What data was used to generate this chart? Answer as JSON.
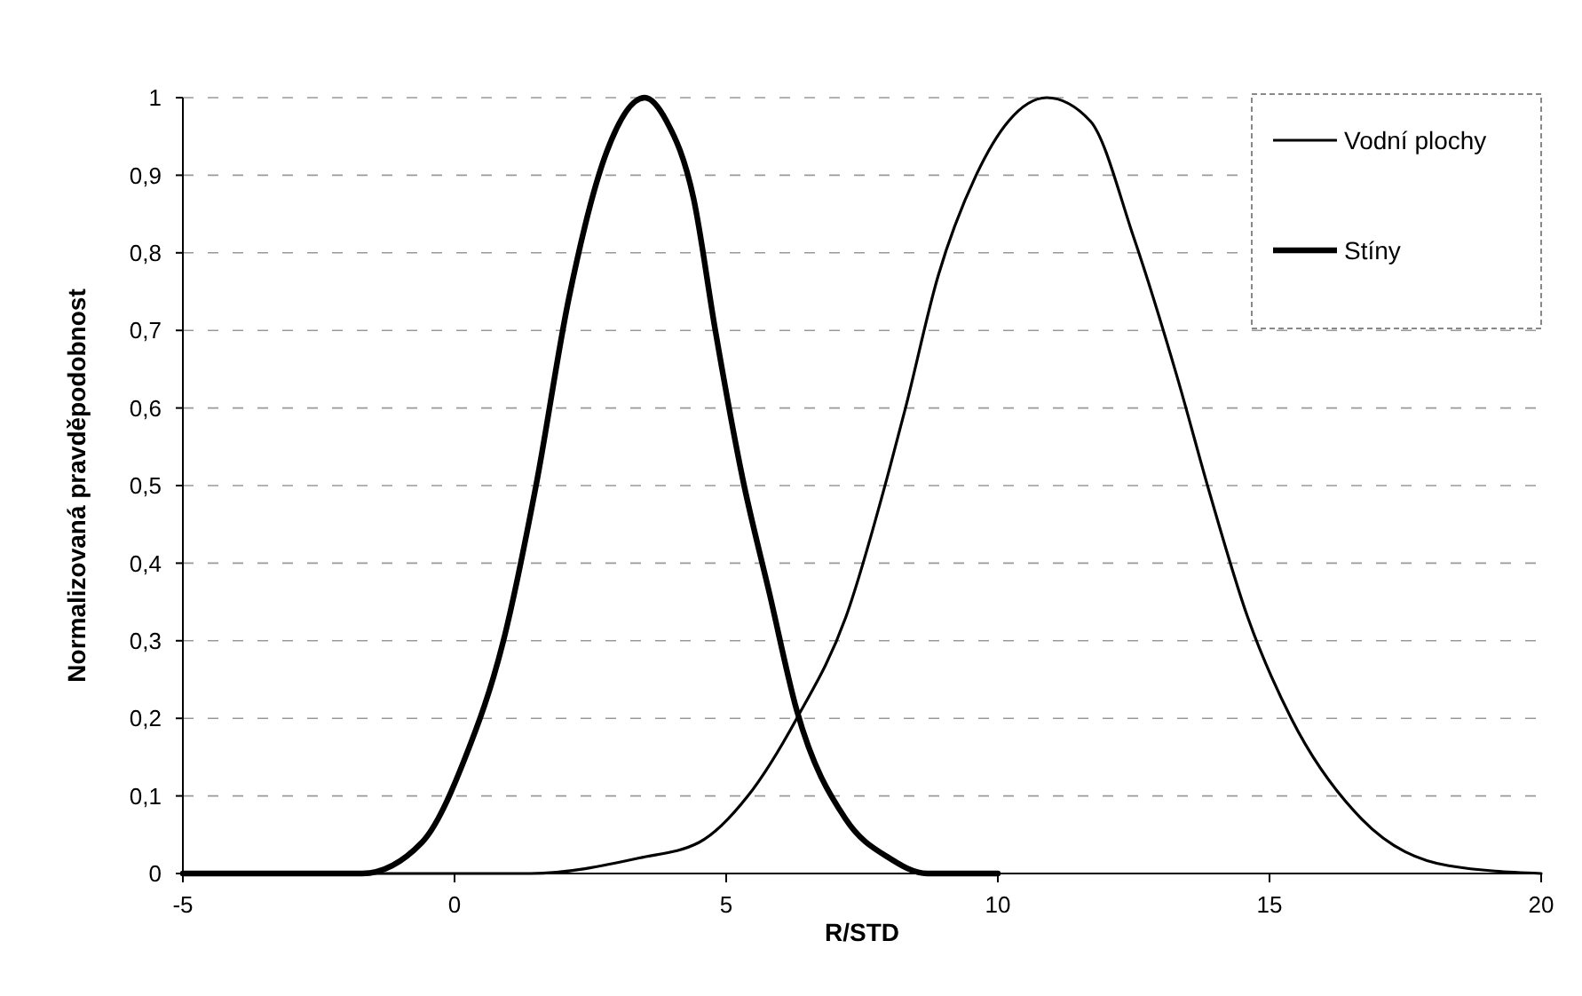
{
  "chart_data": {
    "type": "line",
    "xlabel": "R/STD",
    "ylabel": "Normalizovaná pravděpodobnost",
    "xlim": [
      -5,
      20
    ],
    "xticks": [
      -5,
      0,
      5,
      10,
      15,
      20
    ],
    "ylim": [
      0,
      1
    ],
    "yticks": [
      0,
      {
        "value": 0.1,
        "label": "0,1"
      },
      {
        "value": 0.2,
        "label": "0,2"
      },
      {
        "value": 0.3,
        "label": "0,3"
      },
      {
        "value": 0.4,
        "label": "0,4"
      },
      {
        "value": 0.5,
        "label": "0,5"
      },
      {
        "value": 0.6,
        "label": "0,6"
      },
      {
        "value": 0.7,
        "label": "0,7"
      },
      {
        "value": 0.8,
        "label": "0,8"
      },
      {
        "value": 0.9,
        "label": "0,9"
      },
      1
    ],
    "grid": "y",
    "legend": "top right",
    "marker": "none",
    "line_style": "solid",
    "series": [
      {
        "name": "Vodní plochy",
        "color": "#000000",
        "x": [
          -5,
          1.4,
          3.4,
          4.5,
          5.4,
          6.3,
          7.2,
          8,
          8.3,
          8.9,
          9.6,
          10.2,
          10.9,
          11.7,
          12.5,
          13.3,
          13.9,
          14.6,
          15.4,
          16.7,
          18.3,
          20
        ],
        "values": [
          0,
          0,
          0.02,
          0.04,
          0.1,
          0.2,
          0.33,
          0.52,
          0.6,
          0.77,
          0.9,
          0.97,
          1,
          0.97,
          0.82,
          0.64,
          0.49,
          0.33,
          0.2,
          0.07,
          0.01,
          0
        ]
      },
      {
        "name": "Stíny",
        "color": "#000000",
        "x": [
          -5,
          -1.7,
          -0.6,
          0.2,
          0.9,
          1.5,
          2.1,
          2.8,
          3.5,
          3.9,
          4.4,
          4.8,
          5.3,
          5.8,
          6.3,
          7.2,
          8,
          8.7,
          10
        ],
        "values": [
          0,
          0,
          0.04,
          0.15,
          0.3,
          0.5,
          0.74,
          0.93,
          1,
          0.97,
          0.87,
          0.7,
          0.51,
          0.36,
          0.21,
          0.07,
          0.02,
          0,
          0
        ]
      }
    ]
  }
}
